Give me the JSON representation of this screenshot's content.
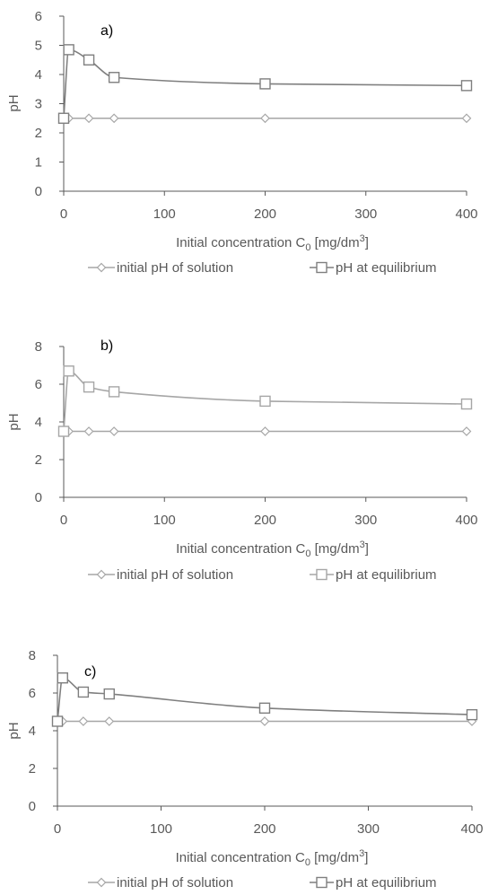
{
  "chart_data": [
    {
      "type": "line",
      "panel_label": "a)",
      "xlabel": "Initial concentration C",
      "xlabel_sub": "0",
      "xlabel_unit": " [mg/dm",
      "xlabel_sup": "3",
      "xlabel_end": "]",
      "ylabel": "pH",
      "xlim": [
        0,
        400
      ],
      "ylim": [
        0,
        6
      ],
      "xticks": [
        "0",
        "100",
        "200",
        "300",
        "400"
      ],
      "yticks": [
        "0",
        "1",
        "2",
        "3",
        "4",
        "5",
        "6"
      ],
      "series": [
        {
          "name": "initial pH of solution",
          "marker": "diamond",
          "color": "#a6a6a6",
          "x": [
            0,
            5,
            25,
            50,
            200,
            400
          ],
          "y": [
            2.5,
            2.5,
            2.5,
            2.5,
            2.5,
            2.5
          ]
        },
        {
          "name": "pH at equilibrium",
          "marker": "square",
          "color": "#7f7f7f",
          "x": [
            0,
            5,
            25,
            50,
            200,
            400
          ],
          "y": [
            2.5,
            4.85,
            4.5,
            3.9,
            3.68,
            3.62
          ]
        }
      ]
    },
    {
      "type": "line",
      "panel_label": "b)",
      "xlabel": "Initial concentration C",
      "xlabel_sub": "0",
      "xlabel_unit": " [mg/dm",
      "xlabel_sup": "3",
      "xlabel_end": "]",
      "ylabel": "pH",
      "xlim": [
        0,
        400
      ],
      "ylim": [
        0,
        8
      ],
      "xticks": [
        "0",
        "100",
        "200",
        "300",
        "400"
      ],
      "yticks": [
        "0",
        "2",
        "4",
        "6",
        "8"
      ],
      "series": [
        {
          "name": "initial pH of solution",
          "marker": "diamond",
          "color": "#a6a6a6",
          "x": [
            0,
            5,
            25,
            50,
            200,
            400
          ],
          "y": [
            3.5,
            3.5,
            3.5,
            3.5,
            3.5,
            3.5
          ]
        },
        {
          "name": "pH at equilibrium",
          "marker": "square",
          "color": "#a6a6a6",
          "x": [
            0,
            5,
            25,
            50,
            200,
            400
          ],
          "y": [
            3.5,
            6.7,
            5.85,
            5.6,
            5.1,
            4.95
          ]
        }
      ]
    },
    {
      "type": "line",
      "panel_label": "c)",
      "xlabel": "Initial concentration C",
      "xlabel_sub": "0",
      "xlabel_unit": " [mg/dm",
      "xlabel_sup": "3",
      "xlabel_end": "]",
      "ylabel": "pH",
      "xlim": [
        0,
        400
      ],
      "ylim": [
        0,
        8
      ],
      "xticks": [
        "0",
        "100",
        "200",
        "300",
        "400"
      ],
      "yticks": [
        "0",
        "2",
        "4",
        "6",
        "8"
      ],
      "series": [
        {
          "name": "initial pH of solution",
          "marker": "diamond",
          "color": "#a6a6a6",
          "x": [
            0,
            5,
            25,
            50,
            200,
            400
          ],
          "y": [
            4.5,
            4.5,
            4.5,
            4.5,
            4.5,
            4.5
          ]
        },
        {
          "name": "pH at equilibrium",
          "marker": "square",
          "color": "#7f7f7f",
          "x": [
            0,
            5,
            25,
            50,
            200,
            400
          ],
          "y": [
            4.5,
            6.8,
            6.05,
            5.95,
            5.2,
            4.85
          ]
        }
      ]
    }
  ]
}
